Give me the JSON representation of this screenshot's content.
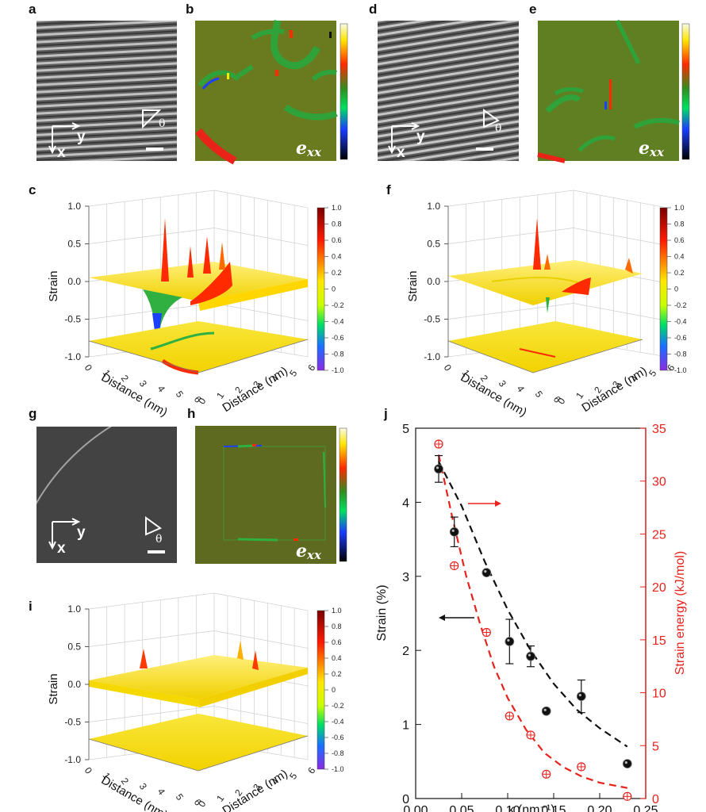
{
  "panels": {
    "a": {
      "label": "a",
      "axis_x": "x",
      "axis_y": "y",
      "angle": "θ"
    },
    "b": {
      "label": "b",
      "field": "e",
      "field_sub": "xx"
    },
    "c": {
      "label": "c"
    },
    "d": {
      "label": "d",
      "axis_x": "x",
      "axis_y": "y",
      "angle": "θ"
    },
    "e": {
      "label": "e",
      "field": "e",
      "field_sub": "xx"
    },
    "f": {
      "label": "f"
    },
    "g": {
      "label": "g",
      "axis_x": "x",
      "axis_y": "y",
      "angle": "θ"
    },
    "h": {
      "label": "h",
      "field": "e",
      "field_sub": "xx"
    },
    "i": {
      "label": "i"
    },
    "j": {
      "label": "j"
    }
  },
  "surface3d": {
    "zlabel": "Strain",
    "xlabel": "Distance (nm)",
    "ylabel": "Distance (nm)",
    "z_ticks": [
      "1.0",
      "0.5",
      "0.0",
      "-0.5",
      "-1.0"
    ],
    "dist_ticks": [
      "0",
      "1",
      "2",
      "3",
      "4",
      "5",
      "6"
    ],
    "colorbar_ticks": [
      "1.0",
      "0.8",
      "0.6",
      "0.4",
      "0.2",
      "0",
      "-0.2",
      "-0.4",
      "-0.6",
      "-0.8",
      "-1.0"
    ]
  },
  "chart_data": {
    "type": "scatter",
    "xlabel": "κ (nm⁻¹)",
    "ylabel": "Strain (%)",
    "y2label": "Strain energy (kJ/mol)",
    "xlim": [
      0.0,
      0.25
    ],
    "ylim": [
      0,
      5
    ],
    "y2lim": [
      0,
      35
    ],
    "x_ticks": [
      "0.00",
      "0.05",
      "0.10",
      "0.15",
      "0.20",
      "0.25"
    ],
    "y_ticks": [
      "0",
      "1",
      "2",
      "3",
      "4",
      "5"
    ],
    "y2_ticks": [
      "0",
      "5",
      "10",
      "15",
      "20",
      "25",
      "30",
      "35"
    ],
    "colors": {
      "strain": "#111111",
      "energy": "#e8221c"
    },
    "series": [
      {
        "axis": "left",
        "x": [
          0.025,
          0.042,
          0.077,
          0.102,
          0.125,
          0.142,
          0.18,
          0.23
        ],
        "y": [
          4.45,
          3.6,
          3.05,
          2.12,
          1.92,
          1.18,
          1.38,
          0.47
        ],
        "err": [
          0.18,
          0.2,
          0.0,
          0.3,
          0.14,
          0.0,
          0.22,
          0.0
        ],
        "fit_x": [
          0.025,
          0.05,
          0.075,
          0.1,
          0.125,
          0.15,
          0.175,
          0.2,
          0.23
        ],
        "fit_y": [
          4.55,
          3.95,
          3.2,
          2.55,
          2.0,
          1.55,
          1.2,
          0.95,
          0.7
        ]
      },
      {
        "axis": "right",
        "x": [
          0.025,
          0.042,
          0.077,
          0.102,
          0.125,
          0.142,
          0.18,
          0.23
        ],
        "y": [
          33.5,
          22.0,
          15.7,
          7.8,
          6.0,
          2.3,
          3.0,
          0.2
        ],
        "fit_x": [
          0.025,
          0.04,
          0.055,
          0.07,
          0.085,
          0.1,
          0.12,
          0.14,
          0.16,
          0.18,
          0.2,
          0.23
        ],
        "fit_y": [
          32.5,
          26.5,
          21.0,
          16.5,
          12.5,
          9.5,
          6.5,
          4.3,
          3.0,
          2.1,
          1.5,
          1.0
        ]
      }
    ]
  }
}
